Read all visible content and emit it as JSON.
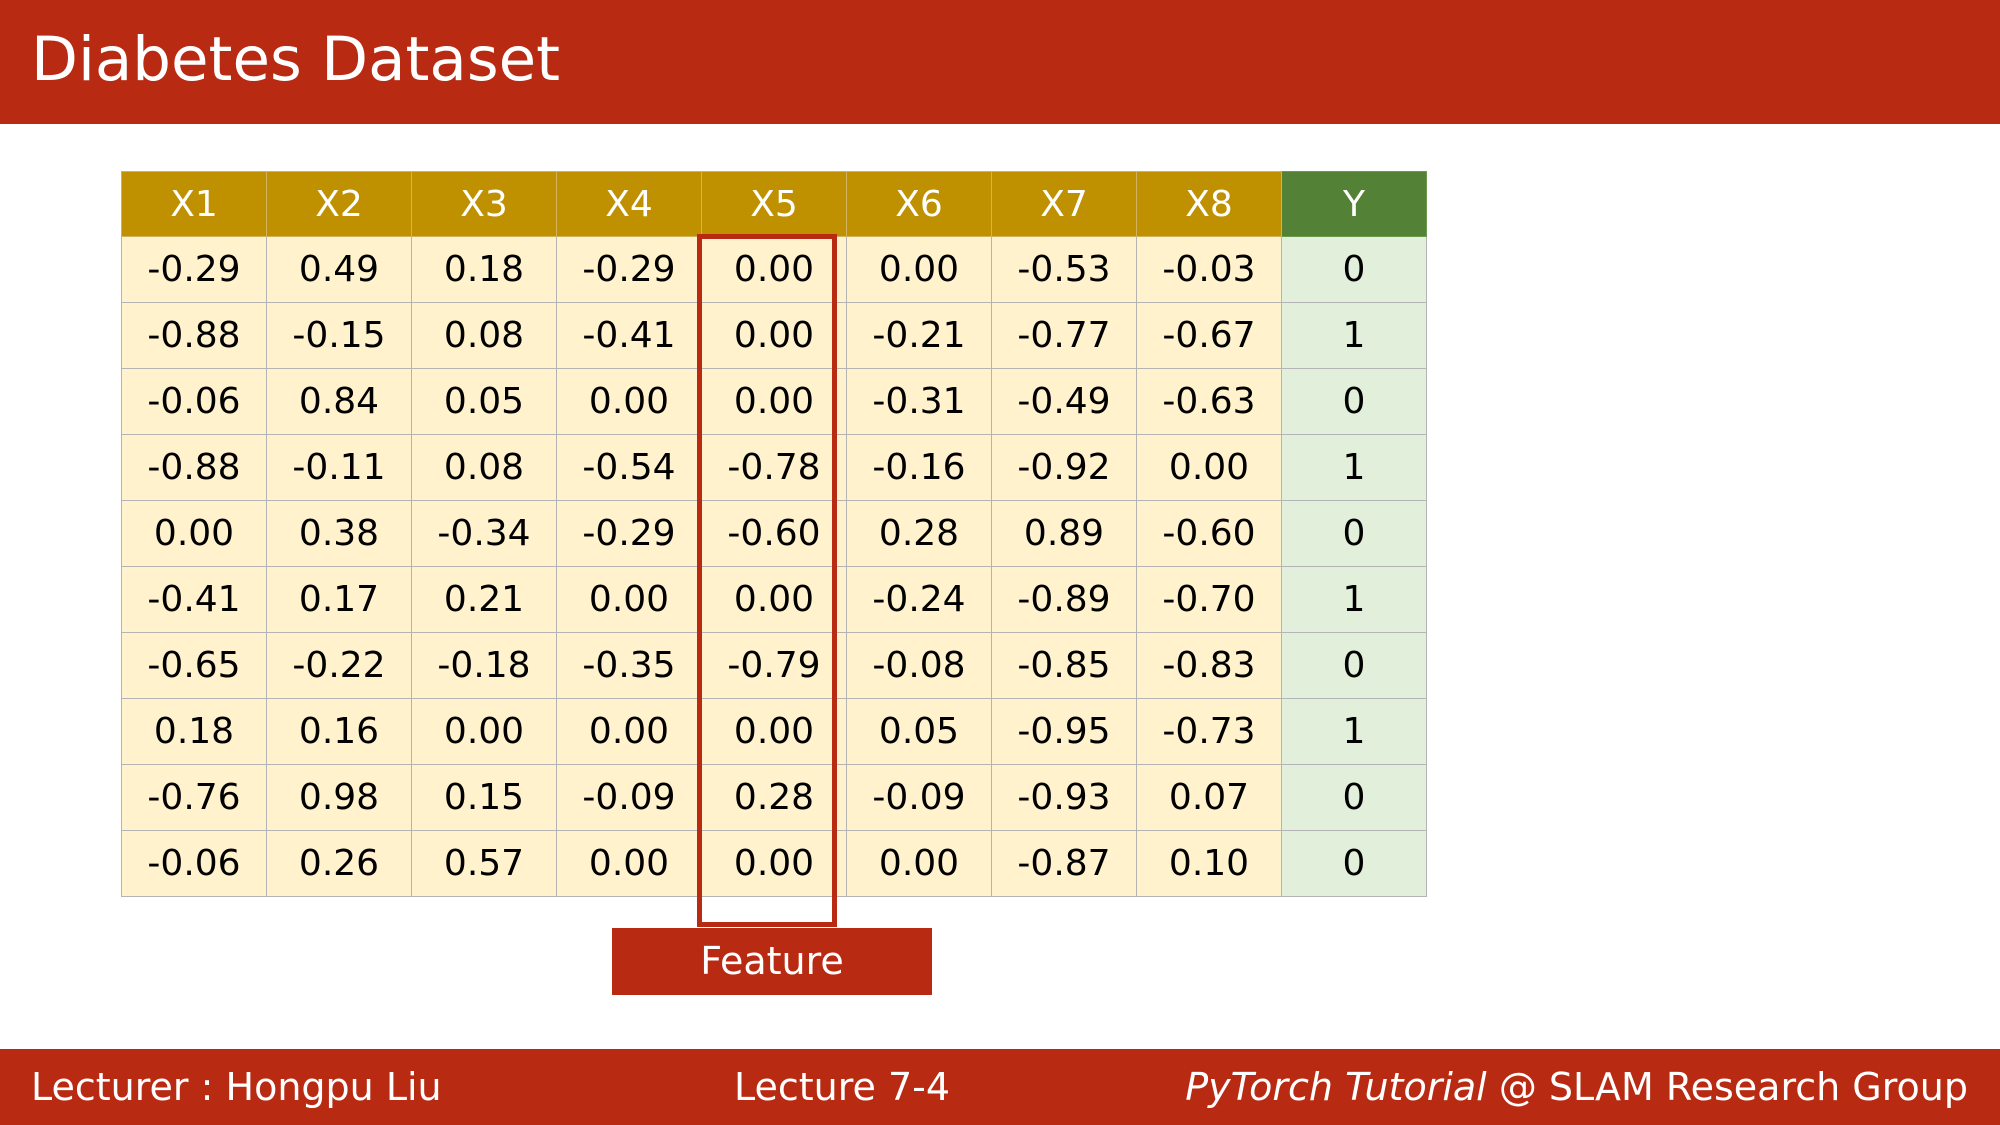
{
  "title": "Diabetes Dataset",
  "table": {
    "columns": [
      "X1",
      "X2",
      "X3",
      "X4",
      "X5",
      "X6",
      "X7",
      "X8",
      "Y"
    ],
    "rows": [
      [
        "-0.29",
        "0.49",
        "0.18",
        "-0.29",
        "0.00",
        "0.00",
        "-0.53",
        "-0.03",
        "0"
      ],
      [
        "-0.88",
        "-0.15",
        "0.08",
        "-0.41",
        "0.00",
        "-0.21",
        "-0.77",
        "-0.67",
        "1"
      ],
      [
        "-0.06",
        "0.84",
        "0.05",
        "0.00",
        "0.00",
        "-0.31",
        "-0.49",
        "-0.63",
        "0"
      ],
      [
        "-0.88",
        "-0.11",
        "0.08",
        "-0.54",
        "-0.78",
        "-0.16",
        "-0.92",
        "0.00",
        "1"
      ],
      [
        "0.00",
        "0.38",
        "-0.34",
        "-0.29",
        "-0.60",
        "0.28",
        "0.89",
        "-0.60",
        "0"
      ],
      [
        "-0.41",
        "0.17",
        "0.21",
        "0.00",
        "0.00",
        "-0.24",
        "-0.89",
        "-0.70",
        "1"
      ],
      [
        "-0.65",
        "-0.22",
        "-0.18",
        "-0.35",
        "-0.79",
        "-0.08",
        "-0.85",
        "-0.83",
        "0"
      ],
      [
        "0.18",
        "0.16",
        "0.00",
        "0.00",
        "0.00",
        "0.05",
        "-0.95",
        "-0.73",
        "1"
      ],
      [
        "-0.76",
        "0.98",
        "0.15",
        "-0.09",
        "0.28",
        "-0.09",
        "-0.93",
        "0.07",
        "0"
      ],
      [
        "-0.06",
        "0.26",
        "0.57",
        "0.00",
        "0.00",
        "0.00",
        "-0.87",
        "0.10",
        "0"
      ]
    ]
  },
  "feature_label": "Feature",
  "footer": {
    "lecturer": "Lecturer : Hongpu Liu",
    "lecture": "Lecture 7-4",
    "course_italic": "PyTorch Tutorial",
    "course_rest": " @ SLAM Research Group"
  },
  "colors": {
    "accent": "#b82a12",
    "header_feature": "#bf9000",
    "header_target": "#538135",
    "cell_feature": "#fff2cc",
    "cell_target": "#e2efda"
  }
}
